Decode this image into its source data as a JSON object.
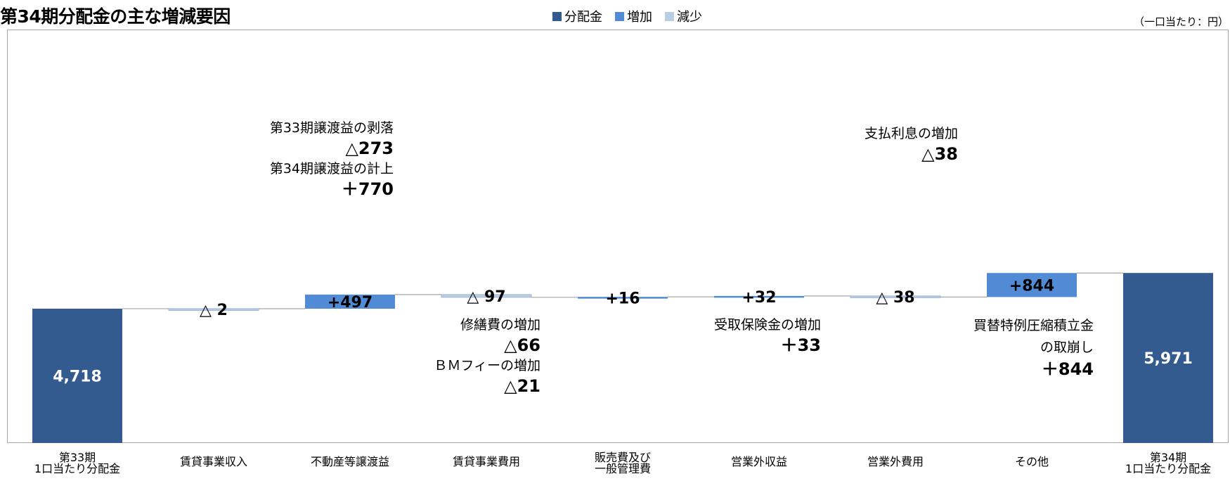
{
  "title": "第34期分配金の主な増減要因",
  "unit_note": "（一口当たり：円）",
  "legend": [
    {
      "label": "分配金",
      "color": "#345b8f"
    },
    {
      "label": "増加",
      "color": "#528bd5"
    },
    {
      "label": "減少",
      "color": "#b9cde5"
    }
  ],
  "chart_data": {
    "type": "bar",
    "subtype": "waterfall",
    "categories": [
      "第33期\n1口当たり分配金",
      "賃貸事業収入",
      "不動産等譲渡益",
      "賃貸事業費用",
      "販売費及び\n一般管理費",
      "営業外収益",
      "営業外費用",
      "その他",
      "第34期\n1口当たり分配金"
    ],
    "steps": [
      {
        "kind": "total",
        "value": 4718,
        "label": "4,718"
      },
      {
        "kind": "decrease",
        "value": -2,
        "label": "△ 2"
      },
      {
        "kind": "increase",
        "value": 497,
        "label": "+497"
      },
      {
        "kind": "decrease",
        "value": -97,
        "label": "△ 97"
      },
      {
        "kind": "increase",
        "value": 16,
        "label": "+16"
      },
      {
        "kind": "increase",
        "value": 32,
        "label": "+32"
      },
      {
        "kind": "decrease",
        "value": -38,
        "label": "△ 38"
      },
      {
        "kind": "increase",
        "value": 844,
        "label": "+844"
      },
      {
        "kind": "total",
        "value": 5971,
        "label": "5,971"
      }
    ],
    "colors": {
      "total": "#345b8f",
      "increase": "#528bd5",
      "decrease": "#b9cde5"
    },
    "legend_position": "top-center"
  },
  "annotations": {
    "a1": {
      "label1": "第33期譲渡益の剥落",
      "value1": "△273",
      "label2": "第34期譲渡益の計上",
      "value2": "＋770"
    },
    "a2": {
      "label1": "修繕費の増加",
      "value1": "△66",
      "label2": "ＢＭフィーの増加",
      "value2": "△21"
    },
    "a3": {
      "label1": "受取保険金の増加",
      "value1": "＋33"
    },
    "a4": {
      "label1": "支払利息の増加",
      "value1": "△38"
    },
    "a5": {
      "label1": "買替特例圧縮積立金",
      "label2": "の取崩し",
      "value1": "＋844"
    }
  }
}
